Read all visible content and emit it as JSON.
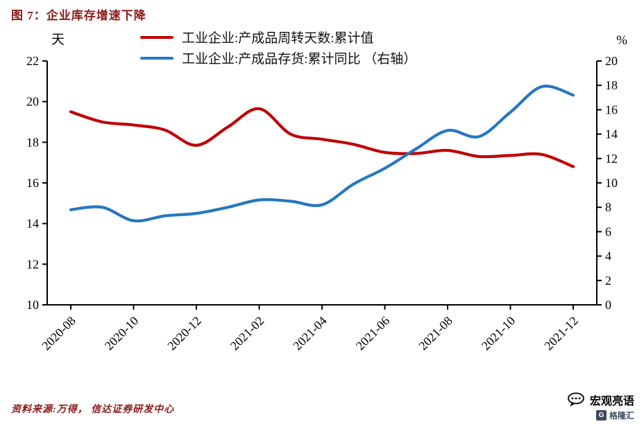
{
  "footer": {
    "source": "资料来源:万得， 信达证券研发中心"
  },
  "watermarks": {
    "wechat": "宏观亮语",
    "site": "格隆汇"
  },
  "chart_data": {
    "type": "line",
    "title": "图 7：企业库存增速下降",
    "x": [
      "2020-08",
      "2020-09",
      "2020-10",
      "2020-11",
      "2020-12",
      "2021-01",
      "2021-02",
      "2021-03",
      "2021-04",
      "2021-05",
      "2021-06",
      "2021-07",
      "2021-08",
      "2021-09",
      "2021-10",
      "2021-11",
      "2021-12"
    ],
    "x_tick_labels": [
      "2020-08",
      "2020-10",
      "2020-12",
      "2021-02",
      "2021-04",
      "2021-06",
      "2021-08",
      "2021-10",
      "2021-12"
    ],
    "left_axis": {
      "unit": "天",
      "min": 10,
      "max": 22,
      "ticks": [
        10,
        12,
        14,
        16,
        18,
        20,
        22
      ]
    },
    "right_axis": {
      "unit": "%",
      "min": 0,
      "max": 20,
      "ticks": [
        0,
        2,
        4,
        6,
        8,
        10,
        12,
        14,
        16,
        18,
        20
      ]
    },
    "grid": false,
    "legend_position": "top",
    "series": [
      {
        "name": "工业企业:产成品周转天数:累计值",
        "axis": "left",
        "color": "#c00000",
        "values": [
          19.5,
          19.0,
          18.85,
          18.6,
          17.85,
          18.75,
          19.65,
          18.4,
          18.15,
          17.9,
          17.5,
          17.45,
          17.6,
          17.3,
          17.35,
          17.4,
          16.8
        ]
      },
      {
        "name": "工业企业:产成品存货:累计同比 （右轴）",
        "axis": "right",
        "color": "#2577c2",
        "values": [
          7.8,
          8.0,
          6.9,
          7.3,
          7.5,
          8.0,
          8.6,
          8.5,
          8.2,
          9.9,
          11.2,
          12.8,
          14.3,
          13.8,
          15.8,
          17.9,
          17.2
        ]
      }
    ]
  }
}
